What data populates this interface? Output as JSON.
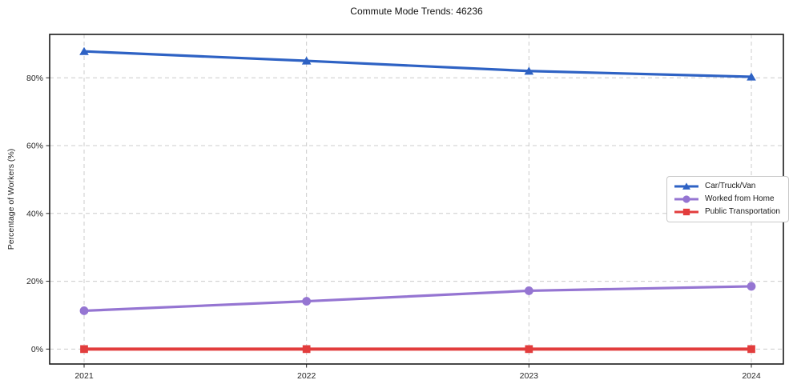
{
  "chart_data": {
    "type": "line",
    "title": "Commute Mode Trends: 46236",
    "xlabel": "",
    "ylabel": "Percentage of Workers (%)",
    "categories": [
      "2021",
      "2022",
      "2023",
      "2024"
    ],
    "series": [
      {
        "name": "Car/Truck/Van",
        "color": "#2e62c4",
        "marker": "triangle",
        "linewidth": 3.2,
        "values": [
          87.8,
          85.0,
          82.0,
          80.3
        ]
      },
      {
        "name": "Worked from Home",
        "color": "#9575d2",
        "marker": "circle",
        "linewidth": 3.2,
        "values": [
          11.3,
          14.1,
          17.2,
          18.5
        ]
      },
      {
        "name": "Public Transportation",
        "color": "#e23d3d",
        "marker": "square",
        "linewidth": 4.0,
        "values": [
          0.0,
          0.0,
          0.0,
          0.0
        ]
      }
    ],
    "y_ticks": [
      0,
      20,
      40,
      60,
      80
    ],
    "y_tick_labels": [
      "0%",
      "20%",
      "40%",
      "60%",
      "80%"
    ],
    "ylim": [
      -4.4,
      92.8
    ],
    "grid": true,
    "grid_style": "dashed",
    "legend_position": "center right"
  },
  "colors": {
    "background": "#ffffff",
    "grid": "#cccccc",
    "spine": "#1a1a1a",
    "tick_label": "#262626",
    "title": "#111111"
  }
}
